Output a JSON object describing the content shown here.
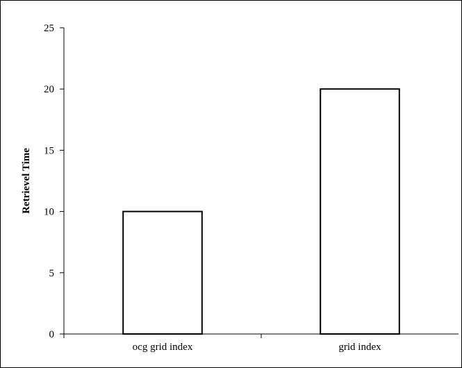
{
  "chart_data": {
    "type": "bar",
    "title": "",
    "xlabel": "",
    "ylabel": "Retrievel Time",
    "categories": [
      "ocg grid index",
      "grid index"
    ],
    "values": [
      10,
      20
    ],
    "ylim": [
      0,
      25
    ],
    "yticks": [
      0,
      5,
      10,
      15,
      20,
      25
    ],
    "grid": false,
    "legend": "none",
    "colors": {
      "bar_fill": "#ffffff",
      "bar_stroke": "#000000",
      "axis": "#000000"
    }
  }
}
